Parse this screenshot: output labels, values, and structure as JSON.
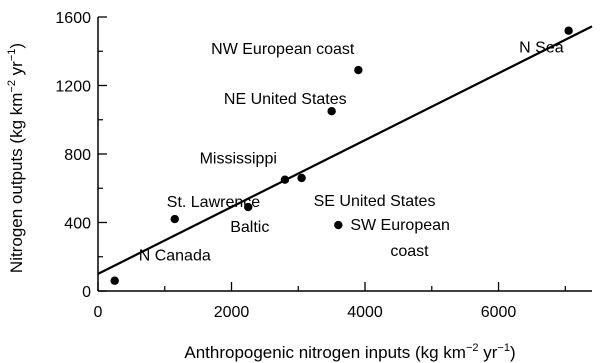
{
  "chart_data": {
    "type": "scatter",
    "title": "",
    "xlabel": {
      "base": "Anthropogenic nitrogen inputs (kg km",
      "sup1": "−2",
      "mid": " yr",
      "sup2": "−1",
      "end": ")"
    },
    "ylabel": {
      "base": "Nitrogen outputs (kg km",
      "sup1": "−2",
      "mid": " yr",
      "sup2": "−1",
      "end": ")"
    },
    "xlim": [
      0,
      7400
    ],
    "ylim": [
      0,
      1600
    ],
    "x_ticks": [
      0,
      2000,
      4000,
      6000
    ],
    "x_tick_labels": [
      "0",
      "2000",
      "4000",
      "6000"
    ],
    "y_ticks": [
      0,
      400,
      800,
      1200,
      1600
    ],
    "y_tick_labels": [
      "0",
      "400",
      "800",
      "1200",
      "1600"
    ],
    "grid": false,
    "points": [
      {
        "label": "N Canada",
        "x": 250,
        "y": 60
      },
      {
        "label": "St. Lawrence",
        "x": 1150,
        "y": 420
      },
      {
        "label": "Baltic",
        "x": 2250,
        "y": 490
      },
      {
        "label": "Mississippi",
        "x": 2800,
        "y": 650
      },
      {
        "label": "SE United States",
        "x": 3050,
        "y": 660
      },
      {
        "label": "SW European coast",
        "x": 3600,
        "y": 385
      },
      {
        "label": "NE United States",
        "x": 3500,
        "y": 1050
      },
      {
        "label": "NW European coast",
        "x": 3900,
        "y": 1290
      },
      {
        "label": "N Sea",
        "x": 7050,
        "y": 1520
      }
    ],
    "fit_line": {
      "x": [
        0,
        7400
      ],
      "y": [
        100,
        1545
      ]
    }
  }
}
